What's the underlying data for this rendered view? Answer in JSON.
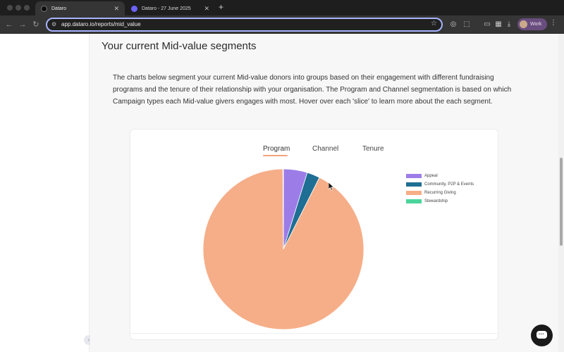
{
  "browser": {
    "tabs": [
      {
        "title": "Dataro",
        "favicon_color": "#111111"
      },
      {
        "title": "Dataro - 27 June 2025",
        "favicon_color": "#6c63ff"
      }
    ],
    "url": "app.dataro.io/reports/mid_value",
    "profile_label": "Work"
  },
  "section": {
    "title": "Your current Mid-value segments",
    "description": "The charts below segment your current Mid-value donors into groups based on their engagement with different fundraising programs and the tenure of their relationship with your organisation. The Program and Channel segmentation is based on which Campaign types each Mid-value givers engages with most. Hover over each 'slice' to learn more about the each segment."
  },
  "chart_tabs": [
    {
      "label": "Program",
      "active": true
    },
    {
      "label": "Channel",
      "active": false
    },
    {
      "label": "Tenure",
      "active": false
    }
  ],
  "chart_data": {
    "type": "pie",
    "legend_position": "top-right",
    "slices": [
      {
        "label": "Appeal",
        "value": 4.8,
        "color": "#9c7de8"
      },
      {
        "label": "Community, P2P & Events",
        "value": 2.6,
        "color": "#1f6e93"
      },
      {
        "label": "Recurring Giving",
        "value": 92.5,
        "color": "#f6ae88"
      },
      {
        "label": "Stewardship",
        "value": 0.1,
        "color": "#4bd49b"
      }
    ]
  }
}
